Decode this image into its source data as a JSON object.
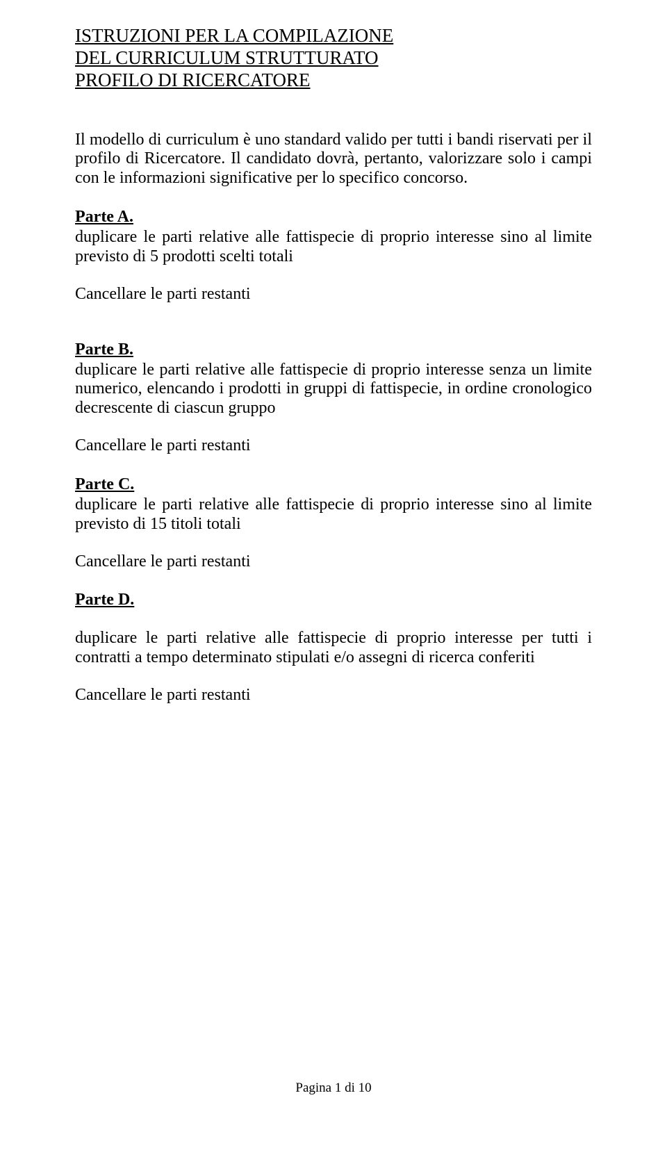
{
  "title": {
    "line1": "ISTRUZIONI PER LA COMPILAZIONE",
    "line2": "DEL CURRICULUM STRUTTURATO",
    "line3": "PROFILO DI RICERCATORE"
  },
  "intro": "Il modello di curriculum è uno standard valido per tutti i bandi riservati per il profilo di Ricercatore. Il candidato dovrà, pertanto, valorizzare solo i campi con le informazioni significative per lo specifico concorso.",
  "parteA": {
    "heading": "Parte A.",
    "body": "duplicare le parti relative alle fattispecie di proprio interesse sino al limite previsto di 5 prodotti scelti totali",
    "cancel": "Cancellare le parti restanti"
  },
  "parteB": {
    "heading": "Parte B.",
    "body": "duplicare le parti relative alle fattispecie di proprio interesse senza un limite numerico, elencando i prodotti in gruppi di fattispecie, in ordine cronologico decrescente di ciascun gruppo",
    "cancel": "Cancellare le parti restanti"
  },
  "parteC": {
    "heading": "Parte C.",
    "body": "duplicare le parti relative alle fattispecie di proprio interesse sino al limite previsto di 15 titoli totali",
    "cancel": "Cancellare le parti restanti"
  },
  "parteD": {
    "heading": "Parte D.",
    "body": "duplicare le parti relative alle fattispecie di proprio interesse per tutti i contratti a tempo determinato stipulati  e/o assegni di ricerca conferiti",
    "cancel": "Cancellare le parti restanti"
  },
  "footer": "Pagina 1 di 10"
}
